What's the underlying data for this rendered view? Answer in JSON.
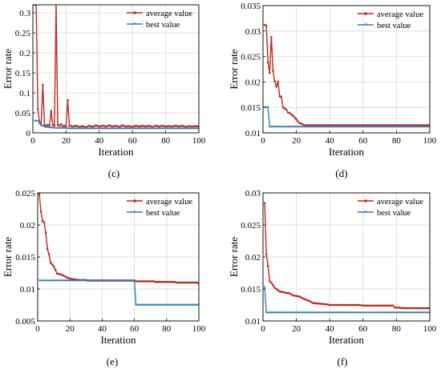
{
  "figure": {
    "panel_labels": [
      "(c)",
      "(d)",
      "(e)",
      "(f)"
    ]
  },
  "colors": {
    "average": "#c0281f",
    "best": "#2f7fc0",
    "grid": "#d9d9d9",
    "axis": "#000000"
  },
  "chart_data": [
    {
      "type": "line",
      "panel": "(c)",
      "xlabel": "Iteration",
      "ylabel": "Error rate",
      "xlim": [
        0,
        100
      ],
      "ylim": [
        0,
        0.32
      ],
      "xticks": [
        0,
        20,
        40,
        60,
        80,
        100
      ],
      "yticks": [
        0,
        0.05,
        0.1,
        0.15,
        0.2,
        0.25,
        0.3
      ],
      "ytick_labels": [
        "0",
        "0.05",
        "0.1",
        "0.15",
        "0.2",
        "0.25",
        "0.3"
      ],
      "grid": true,
      "legend_position": "top-right",
      "series": [
        {
          "name": "average value",
          "key": "average",
          "points": [
            [
              1,
              0.32
            ],
            [
              2,
              0.32
            ],
            [
              3,
              0.06
            ],
            [
              4,
              0.025
            ],
            [
              5,
              0.02
            ],
            [
              6,
              0.12
            ],
            [
              7,
              0.02
            ],
            [
              8,
              0.018
            ],
            [
              9,
              0.02
            ],
            [
              10,
              0.018
            ],
            [
              11,
              0.055
            ],
            [
              12,
              0.02
            ],
            [
              13,
              0.018
            ],
            [
              14,
              0.32
            ],
            [
              15,
              0.02
            ],
            [
              16,
              0.018
            ],
            [
              17,
              0.022
            ],
            [
              18,
              0.016
            ],
            [
              19,
              0.018
            ],
            [
              20,
              0.015
            ],
            [
              21,
              0.082
            ],
            [
              22,
              0.018
            ],
            [
              24,
              0.016
            ],
            [
              26,
              0.018
            ],
            [
              28,
              0.015
            ],
            [
              30,
              0.017
            ],
            [
              32,
              0.014
            ],
            [
              34,
              0.018
            ],
            [
              36,
              0.015
            ],
            [
              38,
              0.019
            ],
            [
              40,
              0.016
            ],
            [
              42,
              0.018
            ],
            [
              44,
              0.016
            ],
            [
              46,
              0.019
            ],
            [
              48,
              0.016
            ],
            [
              50,
              0.018
            ],
            [
              52,
              0.015
            ],
            [
              54,
              0.019
            ],
            [
              56,
              0.016
            ],
            [
              58,
              0.017
            ],
            [
              60,
              0.015
            ],
            [
              62,
              0.018
            ],
            [
              64,
              0.016
            ],
            [
              66,
              0.018
            ],
            [
              68,
              0.016
            ],
            [
              70,
              0.018
            ],
            [
              72,
              0.015
            ],
            [
              74,
              0.018
            ],
            [
              76,
              0.016
            ],
            [
              78,
              0.018
            ],
            [
              80,
              0.016
            ],
            [
              82,
              0.017
            ],
            [
              84,
              0.016
            ],
            [
              86,
              0.018
            ],
            [
              88,
              0.016
            ],
            [
              90,
              0.018
            ],
            [
              92,
              0.015
            ],
            [
              94,
              0.017
            ],
            [
              96,
              0.016
            ],
            [
              98,
              0.017
            ],
            [
              100,
              0.016
            ]
          ]
        },
        {
          "name": "best value",
          "key": "best",
          "points": [
            [
              1,
              0.03
            ],
            [
              4,
              0.03
            ],
            [
              5,
              0.02
            ],
            [
              7,
              0.015
            ],
            [
              9,
              0.014
            ],
            [
              12,
              0.013
            ],
            [
              14,
              0.012
            ],
            [
              20,
              0.012
            ],
            [
              22,
              0.011
            ],
            [
              100,
              0.011
            ]
          ]
        }
      ]
    },
    {
      "type": "line",
      "panel": "(d)",
      "xlabel": "Iteration",
      "ylabel": "Error rate",
      "xlim": [
        0,
        100
      ],
      "ylim": [
        0.01,
        0.035
      ],
      "xticks": [
        0,
        20,
        40,
        60,
        80,
        100
      ],
      "yticks": [
        0.01,
        0.015,
        0.02,
        0.025,
        0.03,
        0.035
      ],
      "ytick_labels": [
        "0.01",
        "0.015",
        "0.02",
        "0.025",
        "0.03",
        "0.035"
      ],
      "grid": true,
      "legend_position": "top-right",
      "series": [
        {
          "name": "average value",
          "key": "average",
          "points": [
            [
              1,
              0.0312
            ],
            [
              2,
              0.0311
            ],
            [
              3,
              0.0238
            ],
            [
              4,
              0.0218
            ],
            [
              5,
              0.0288
            ],
            [
              6,
              0.0222
            ],
            [
              7,
              0.0202
            ],
            [
              8,
              0.0191
            ],
            [
              9,
              0.0201
            ],
            [
              10,
              0.0172
            ],
            [
              11,
              0.0171
            ],
            [
              12,
              0.015
            ],
            [
              13,
              0.0148
            ],
            [
              14,
              0.0146
            ],
            [
              15,
              0.014
            ],
            [
              16,
              0.0139
            ],
            [
              17,
              0.0136
            ],
            [
              18,
              0.0134
            ],
            [
              19,
              0.013
            ],
            [
              20,
              0.0127
            ],
            [
              21,
              0.0122
            ],
            [
              22,
              0.0119
            ],
            [
              23,
              0.0118
            ],
            [
              25,
              0.0115
            ],
            [
              100,
              0.0115
            ]
          ]
        },
        {
          "name": "best value",
          "key": "best",
          "points": [
            [
              1,
              0.015
            ],
            [
              3,
              0.015
            ],
            [
              4,
              0.0112
            ],
            [
              100,
              0.0112
            ]
          ]
        }
      ]
    },
    {
      "type": "line",
      "panel": "(e)",
      "xlabel": "Iteration",
      "ylabel": "Error rate",
      "xlim": [
        0,
        100
      ],
      "ylim": [
        0.005,
        0.025
      ],
      "xticks": [
        0,
        20,
        40,
        60,
        80,
        100
      ],
      "yticks": [
        0.005,
        0.01,
        0.015,
        0.02,
        0.025
      ],
      "ytick_labels": [
        "0.005",
        "0.01",
        "0.015",
        "0.02",
        "0.025"
      ],
      "grid": true,
      "legend_position": "top-right",
      "series": [
        {
          "name": "average value",
          "key": "average",
          "points": [
            [
              1,
              0.0248
            ],
            [
              2,
              0.0221
            ],
            [
              3,
              0.0206
            ],
            [
              4,
              0.0204
            ],
            [
              5,
              0.0188
            ],
            [
              6,
              0.0163
            ],
            [
              7,
              0.0154
            ],
            [
              8,
              0.0141
            ],
            [
              9,
              0.0138
            ],
            [
              10,
              0.0135
            ],
            [
              11,
              0.013
            ],
            [
              12,
              0.0124
            ],
            [
              14,
              0.0123
            ],
            [
              16,
              0.0121
            ],
            [
              18,
              0.0118
            ],
            [
              20,
              0.0116
            ],
            [
              23,
              0.0115
            ],
            [
              26,
              0.0114
            ],
            [
              30,
              0.0114
            ],
            [
              31,
              0.0113
            ],
            [
              60,
              0.0113
            ],
            [
              61,
              0.0112
            ],
            [
              72,
              0.0112
            ],
            [
              73,
              0.0111
            ],
            [
              85,
              0.0111
            ],
            [
              86,
              0.011
            ],
            [
              99,
              0.011
            ],
            [
              100,
              0.0108
            ]
          ]
        },
        {
          "name": "best value",
          "key": "best",
          "points": [
            [
              1,
              0.0113
            ],
            [
              60,
              0.0113
            ],
            [
              61,
              0.0075
            ],
            [
              100,
              0.0075
            ]
          ]
        }
      ]
    },
    {
      "type": "line",
      "panel": "(f)",
      "xlabel": "Iteration",
      "ylabel": "Error rate",
      "xlim": [
        0,
        100
      ],
      "ylim": [
        0.01,
        0.03
      ],
      "xticks": [
        0,
        20,
        40,
        60,
        80,
        100
      ],
      "yticks": [
        0.01,
        0.015,
        0.02,
        0.025,
        0.03
      ],
      "ytick_labels": [
        "0.01",
        "0.015",
        "0.02",
        "0.025",
        "0.03"
      ],
      "grid": true,
      "legend_position": "top-right",
      "series": [
        {
          "name": "average value",
          "key": "average",
          "points": [
            [
              1,
              0.0284
            ],
            [
              2,
              0.0204
            ],
            [
              3,
              0.0186
            ],
            [
              4,
              0.0162
            ],
            [
              5,
              0.016
            ],
            [
              6,
              0.0156
            ],
            [
              7,
              0.0152
            ],
            [
              8,
              0.015
            ],
            [
              9,
              0.0148
            ],
            [
              10,
              0.0146
            ],
            [
              12,
              0.0145
            ],
            [
              14,
              0.0144
            ],
            [
              16,
              0.0143
            ],
            [
              18,
              0.014
            ],
            [
              20,
              0.0139
            ],
            [
              22,
              0.0138
            ],
            [
              24,
              0.0135
            ],
            [
              26,
              0.0133
            ],
            [
              28,
              0.0131
            ],
            [
              30,
              0.0128
            ],
            [
              34,
              0.0127
            ],
            [
              38,
              0.0126
            ],
            [
              40,
              0.0125
            ],
            [
              58,
              0.0125
            ],
            [
              60,
              0.0124
            ],
            [
              78,
              0.0124
            ],
            [
              79,
              0.0121
            ],
            [
              85,
              0.012
            ],
            [
              100,
              0.012
            ]
          ]
        },
        {
          "name": "best value",
          "key": "best",
          "points": [
            [
              1,
              0.0153
            ],
            [
              2,
              0.0113
            ],
            [
              100,
              0.0113
            ]
          ]
        }
      ]
    }
  ]
}
